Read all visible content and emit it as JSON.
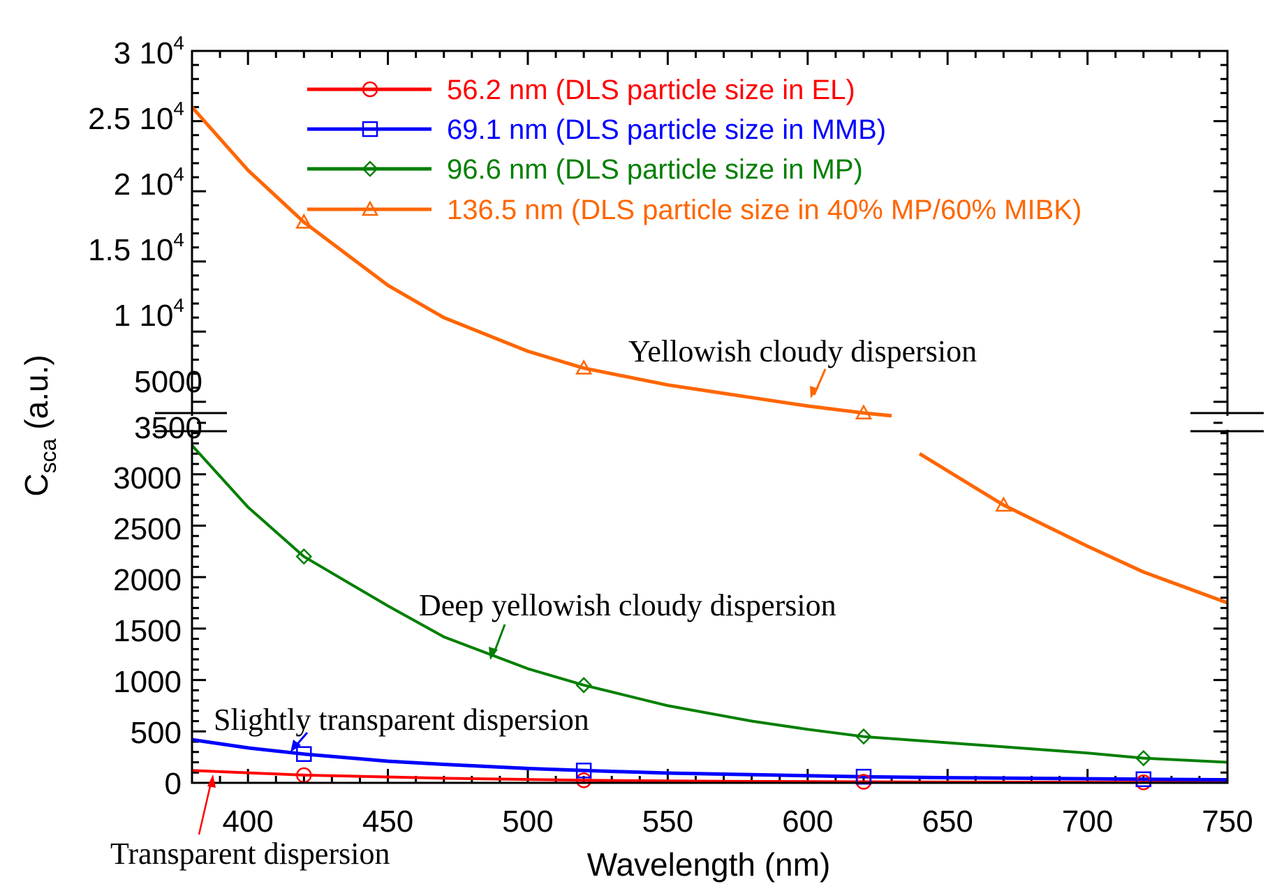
{
  "chart_data": {
    "type": "line",
    "xlabel": "Wavelength (nm)",
    "ylabel": "C",
    "ylabel_sub": "sca",
    "ylabel_unit": "(a.u.)",
    "xlim": [
      380,
      750
    ],
    "x_ticks": [
      400,
      450,
      500,
      550,
      600,
      650,
      700,
      750
    ],
    "y_lower_range": [
      0,
      3500
    ],
    "y_lower_ticks": [
      "0",
      "500",
      "1000",
      "1500",
      "2000",
      "2500",
      "3000",
      "3500"
    ],
    "y_upper_range": [
      3500,
      30000
    ],
    "y_upper_ticks": [
      {
        "value": 5000,
        "mantissa": "5000",
        "exp": ""
      },
      {
        "value": 10000,
        "mantissa": "1 10",
        "exp": "4"
      },
      {
        "value": 15000,
        "mantissa": "1.5 10",
        "exp": "4"
      },
      {
        "value": 20000,
        "mantissa": "2 10",
        "exp": "4"
      },
      {
        "value": 25000,
        "mantissa": "2.5 10",
        "exp": "4"
      },
      {
        "value": 30000,
        "mantissa": "3 10",
        "exp": "4"
      }
    ],
    "axis_break": 3500,
    "legend_position": "top",
    "series": [
      {
        "name": "56.2 nm (DLS particle size in EL)",
        "color": "#ff0000",
        "marker": "circle",
        "x": [
          380,
          420,
          470,
          520,
          570,
          620,
          670,
          720,
          750
        ],
        "y": [
          120,
          75,
          45,
          25,
          15,
          10,
          7,
          5,
          4
        ],
        "marker_x": [
          420,
          520,
          620,
          720
        ]
      },
      {
        "name": "69.1 nm (DLS particle size in MMB)",
        "color": "#0000ff",
        "marker": "square",
        "x": [
          380,
          400,
          420,
          450,
          470,
          500,
          520,
          550,
          580,
          620,
          650,
          700,
          720,
          750
        ],
        "y": [
          420,
          340,
          280,
          210,
          180,
          140,
          120,
          95,
          80,
          60,
          50,
          40,
          35,
          30
        ],
        "marker_x": [
          420,
          520,
          620,
          720
        ]
      },
      {
        "name": "96.6 nm (DLS particle size in MP)",
        "color": "#007f00",
        "marker": "diamond",
        "x": [
          380,
          400,
          420,
          450,
          470,
          500,
          520,
          550,
          580,
          600,
          620,
          650,
          700,
          720,
          750
        ],
        "y": [
          3280,
          2680,
          2200,
          1720,
          1420,
          1110,
          950,
          750,
          600,
          520,
          450,
          390,
          290,
          240,
          200
        ],
        "marker_x": [
          420,
          520,
          620,
          720
        ]
      },
      {
        "name": "136.5 nm (DLS particle size in 40% MP/60% MIBK)",
        "color": "#ff6600",
        "marker": "triangle",
        "x": [
          380,
          400,
          420,
          450,
          470,
          500,
          520,
          550,
          580,
          600,
          620,
          630,
          640,
          670,
          700,
          720,
          750
        ],
        "y": [
          26000,
          21500,
          17800,
          13300,
          11000,
          8600,
          7400,
          6200,
          5300,
          4700,
          4200,
          4000,
          3200,
          2700,
          2300,
          2050,
          1750
        ],
        "marker_x": [
          420,
          520,
          620,
          670
        ]
      }
    ],
    "annotations": [
      {
        "text": "Yellowish cloudy dispersion",
        "color": "#000000",
        "arrow_color": "#ff6600"
      },
      {
        "text": "Deep yellowish cloudy dispersion",
        "color": "#000000",
        "arrow_color": "#007f00"
      },
      {
        "text": "Slightly transparent dispersion",
        "color": "#000000",
        "arrow_color": "#0000ff"
      },
      {
        "text": "Transparent dispersion",
        "color": "#000000",
        "arrow_color": "#ff0000"
      }
    ]
  }
}
